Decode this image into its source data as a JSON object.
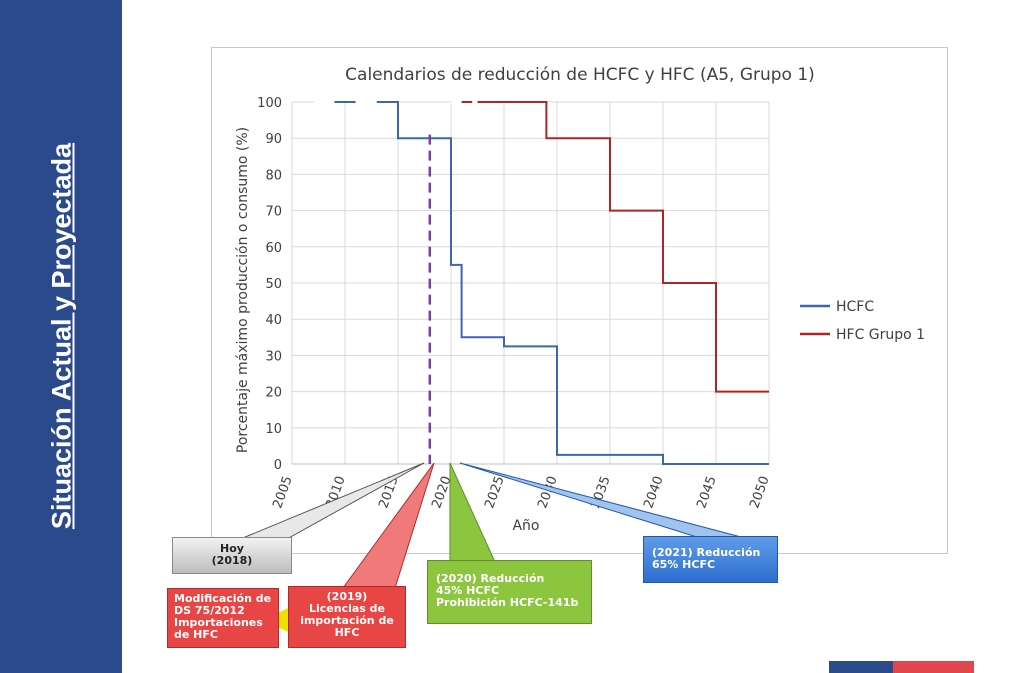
{
  "sidebar": {
    "title": "Situación Actual y Proyectada"
  },
  "colors": {
    "sidebar": "#2b4a8c",
    "hcfc": "#3a66b5",
    "hfc": "#b02424",
    "today_line": "#7b3fa0"
  },
  "chart_data": {
    "type": "line",
    "subtype": "step",
    "title": "Calendarios de reducción de HCFC y HFC (A5, Grupo 1)",
    "xlabel": "Año",
    "ylabel": "Porcentaje máximo producción o consumo (%)",
    "xlim": [
      2005,
      2050
    ],
    "ylim": [
      0,
      100
    ],
    "xticks": [
      2005,
      2010,
      2015,
      2020,
      2025,
      2030,
      2035,
      2040,
      2045,
      2050
    ],
    "yticks": [
      0,
      10,
      20,
      30,
      40,
      50,
      60,
      70,
      80,
      90,
      100
    ],
    "grid": true,
    "legend_position": "right",
    "series": [
      {
        "name": "HCFC",
        "color": "#3a66b5",
        "dashed_segments": [
          [
            2007,
            2009
          ],
          [
            2011,
            2013
          ]
        ],
        "points": [
          [
            2007,
            100
          ],
          [
            2015,
            100
          ],
          [
            2015,
            90
          ],
          [
            2020,
            90
          ],
          [
            2020,
            55
          ],
          [
            2021,
            55
          ],
          [
            2021,
            35
          ],
          [
            2025,
            35
          ],
          [
            2025,
            32.5
          ],
          [
            2030,
            32.5
          ],
          [
            2030,
            2.5
          ],
          [
            2040,
            2.5
          ],
          [
            2040,
            0
          ],
          [
            2050,
            0
          ]
        ]
      },
      {
        "name": "HFC Grupo 1",
        "color": "#b02424",
        "dashed_segments": [
          [
            2020,
            2021
          ],
          [
            2022,
            2022.5
          ]
        ],
        "points": [
          [
            2020,
            100
          ],
          [
            2029,
            100
          ],
          [
            2029,
            90
          ],
          [
            2035,
            90
          ],
          [
            2035,
            70
          ],
          [
            2040,
            70
          ],
          [
            2040,
            50
          ],
          [
            2045,
            50
          ],
          [
            2045,
            20
          ],
          [
            2050,
            20
          ]
        ]
      }
    ],
    "today_marker": {
      "x": 2018
    }
  },
  "callouts": {
    "hoy": [
      "Hoy",
      "(2018)"
    ],
    "modificacion": [
      "Modificación de",
      "DS 75/2012",
      "Importaciones",
      "de HFC"
    ],
    "licencias": [
      "(2019)",
      "Licencias de",
      "importación de",
      "HFC"
    ],
    "reduccion45": [
      "(2020) Reducción",
      "45% HCFC",
      "Prohibición HCFC-141b"
    ],
    "reduccion65": [
      "(2021) Reducción",
      "65% HCFC"
    ]
  }
}
